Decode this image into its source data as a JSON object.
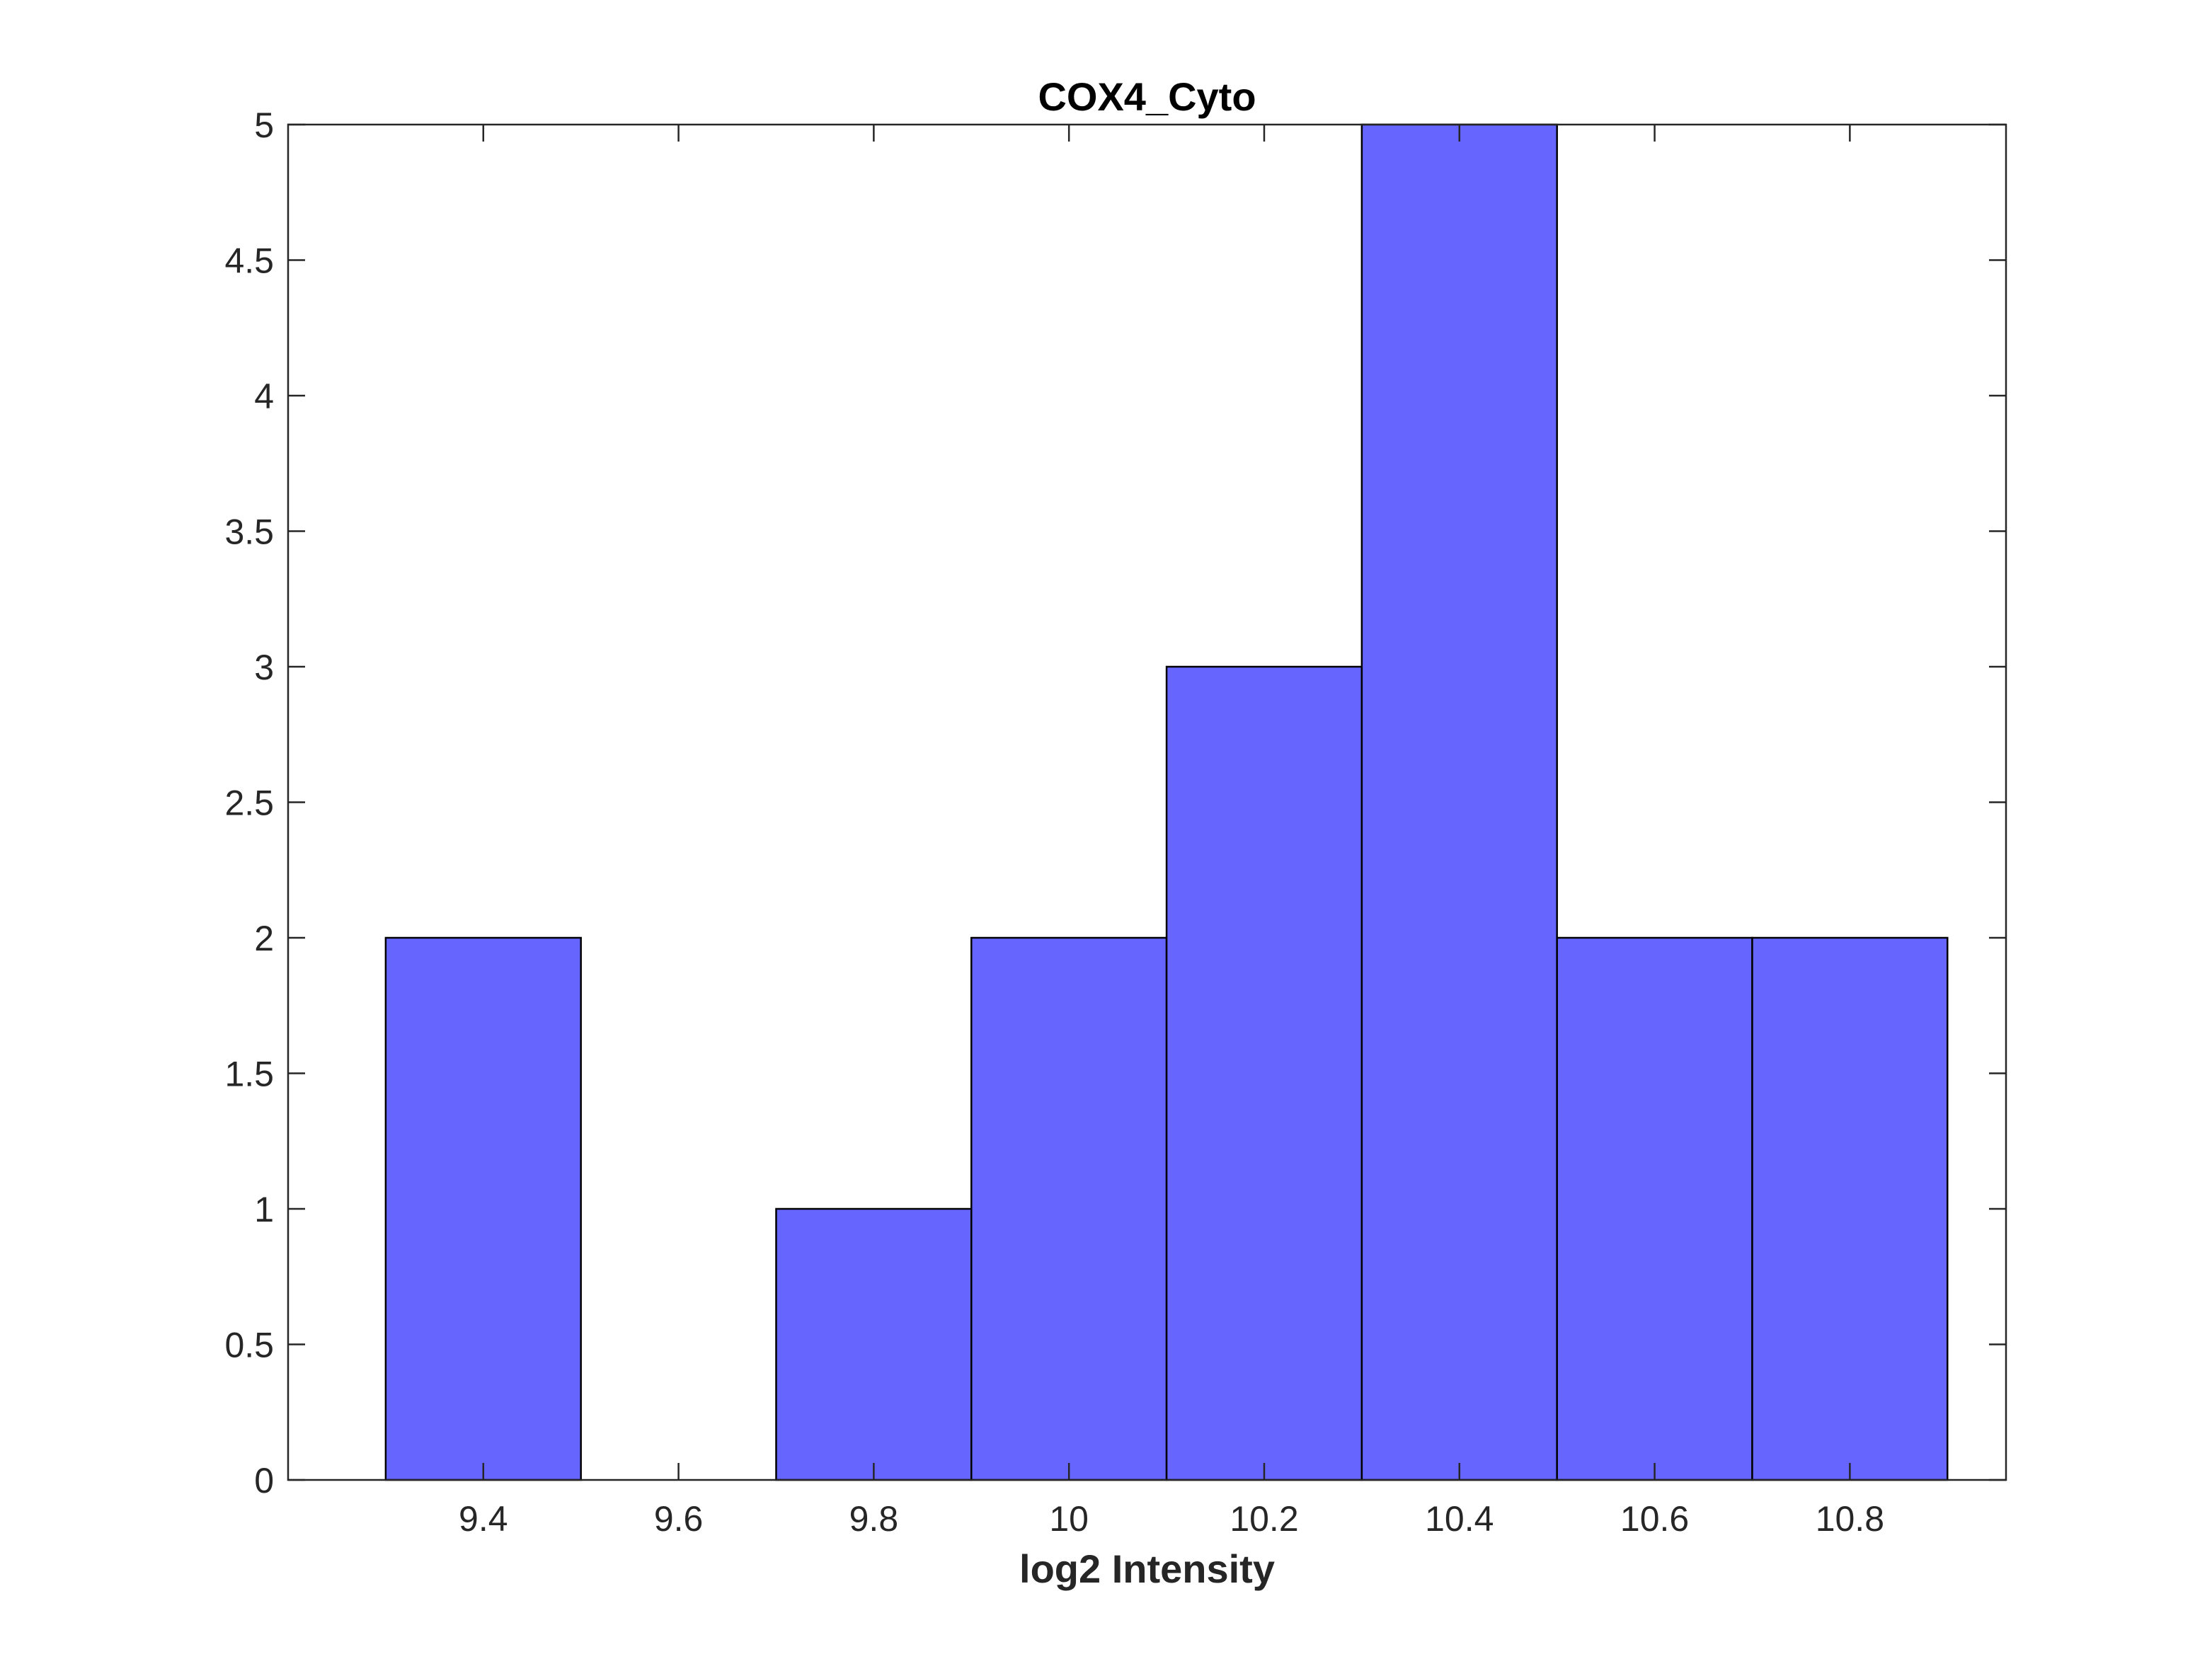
{
  "chart_data": {
    "type": "bar",
    "subtype": "histogram",
    "title": "COX4_Cyto",
    "xlabel": "log2 Intensity",
    "ylabel": "",
    "xlim": [
      9.2,
      10.96
    ],
    "ylim": [
      0,
      5
    ],
    "xticks": [
      "9.4",
      "9.6",
      "9.8",
      "10",
      "10.2",
      "10.4",
      "10.6",
      "10.8"
    ],
    "xtick_values": [
      9.4,
      9.6,
      9.8,
      10.0,
      10.2,
      10.4,
      10.6,
      10.8
    ],
    "yticks": [
      "0",
      "0.5",
      "1",
      "1.5",
      "2",
      "2.5",
      "3",
      "3.5",
      "4",
      "4.5",
      "5"
    ],
    "ytick_values": [
      0,
      0.5,
      1,
      1.5,
      2,
      2.5,
      3,
      3.5,
      4,
      4.5,
      5
    ],
    "bin_edges": [
      9.3,
      9.5,
      9.7,
      9.9,
      10.1,
      10.3,
      10.5,
      10.7,
      10.9
    ],
    "counts": [
      2,
      0,
      1,
      2,
      3,
      5,
      2,
      2
    ],
    "bar_color": "#6666ff",
    "edge_color": "#000000",
    "grid": false,
    "legend": "none"
  }
}
